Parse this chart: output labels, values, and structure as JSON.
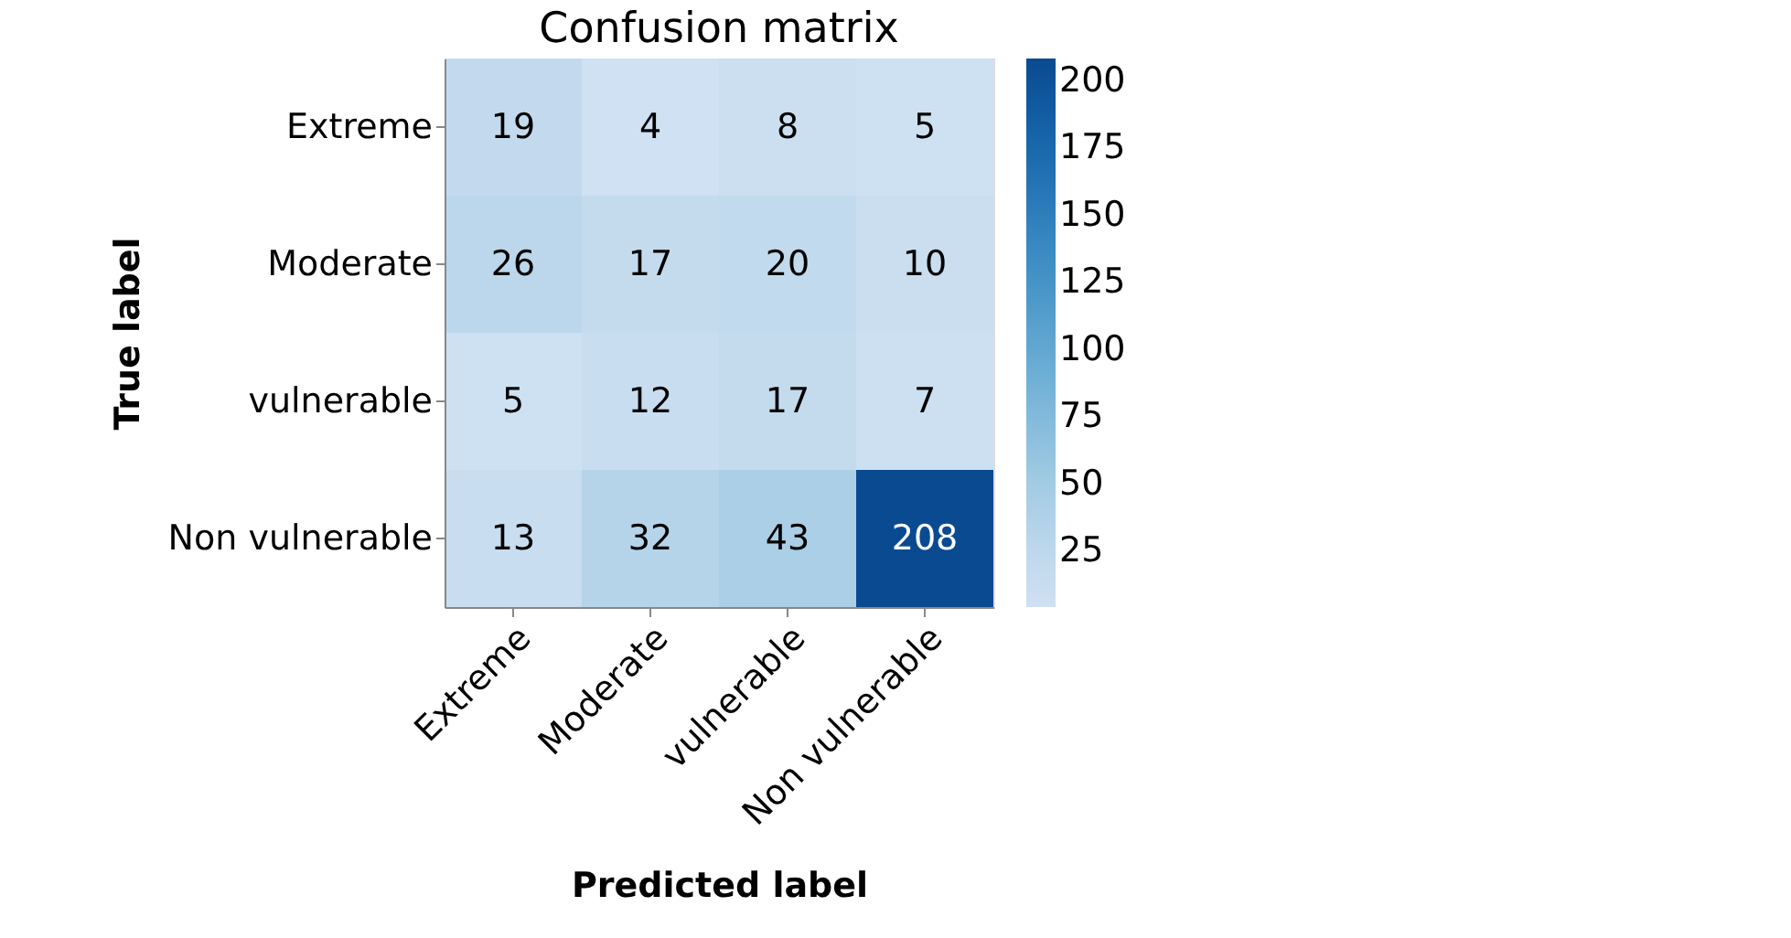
{
  "chart_data": {
    "type": "heatmap",
    "title": "Confusion matrix",
    "xlabel": "Predicted label",
    "ylabel": "True label",
    "categories": [
      "Extreme",
      "Moderate",
      "vulnerable",
      "Non vulnerable"
    ],
    "y_categories": [
      "Extreme",
      "Moderate",
      "vulnerable",
      "Non vulnerable"
    ],
    "cells": [
      [
        19,
        4,
        8,
        5
      ],
      [
        26,
        17,
        20,
        10
      ],
      [
        5,
        12,
        17,
        7
      ],
      [
        13,
        32,
        43,
        208
      ]
    ],
    "clim": [
      4,
      208
    ],
    "cticks": [
      25,
      50,
      75,
      100,
      125,
      150,
      175,
      200
    ],
    "data_labels": true,
    "grid": false
  }
}
